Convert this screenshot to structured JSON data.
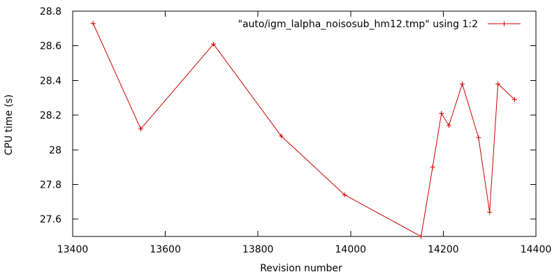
{
  "chart_data": {
    "type": "line",
    "xlabel": "Revision number",
    "ylabel": "CPU time (s)",
    "xlim": [
      13400,
      14400
    ],
    "ylim": [
      27.5,
      28.8
    ],
    "xticks": [
      13400,
      13600,
      13800,
      14000,
      14200,
      14400
    ],
    "yticks": [
      27.6,
      27.8,
      28,
      28.2,
      28.4,
      28.6,
      28.8
    ],
    "xtick_labels": [
      "13400",
      "13600",
      "13800",
      "14000",
      "14200",
      "14400"
    ],
    "ytick_labels": [
      "27.6",
      "27.8",
      "28",
      "28.2",
      "28.4",
      "28.6",
      "28.8"
    ],
    "legend_position": "top-right",
    "grid": false,
    "series": [
      {
        "name": "\"auto/igm_lalpha_noisosub_hm12.tmp\" using 1:2",
        "color": "#cc0000",
        "marker": "plus",
        "points": [
          {
            "x": 13444,
            "y": 28.73
          },
          {
            "x": 13547,
            "y": 28.12
          },
          {
            "x": 13704,
            "y": 28.61
          },
          {
            "x": 13850,
            "y": 28.08
          },
          {
            "x": 13987,
            "y": 27.74
          },
          {
            "x": 14152,
            "y": 27.5
          },
          {
            "x": 14177,
            "y": 27.9
          },
          {
            "x": 14196,
            "y": 28.21
          },
          {
            "x": 14212,
            "y": 28.14
          },
          {
            "x": 14241,
            "y": 28.38
          },
          {
            "x": 14276,
            "y": 28.07
          },
          {
            "x": 14300,
            "y": 27.64
          },
          {
            "x": 14318,
            "y": 28.38
          },
          {
            "x": 14354,
            "y": 28.29
          }
        ]
      }
    ]
  }
}
